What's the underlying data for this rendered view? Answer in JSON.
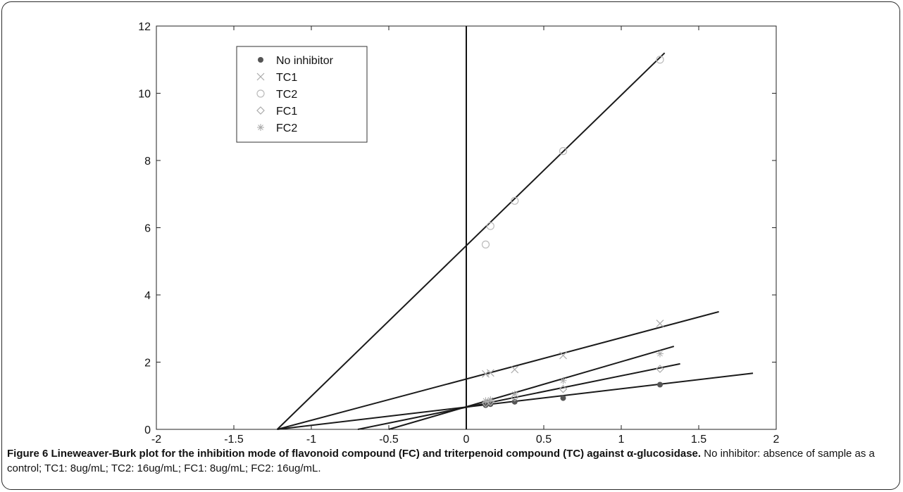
{
  "figure": {
    "caption_bold": "Figure 6 Lineweaver-Burk plot for the inhibition mode of flavonoid compound (FC) and triterpenoid compound (TC) against α-glucosidase.",
    "caption_text": " No inhibitor: absence of sample as a control; TC1: 8ug/mL; TC2: 16ug/mL; FC1: 8ug/mL; FC2: 16ug/mL."
  },
  "chart_data": {
    "type": "scatter",
    "title": "",
    "xlabel": "",
    "ylabel": "",
    "xlim": [
      -2,
      2
    ],
    "ylim": [
      0,
      12
    ],
    "xticks": [
      -2,
      -1.5,
      -1,
      -0.5,
      0,
      0.5,
      1,
      1.5,
      2
    ],
    "xtick_labels": [
      "-2",
      "-1.5",
      "-1",
      "-0.5",
      "0",
      "0.5",
      "1",
      "1.5",
      "2"
    ],
    "yticks": [
      0,
      2,
      4,
      6,
      8,
      10,
      12
    ],
    "ytick_labels": [
      "0",
      "2",
      "4",
      "6",
      "8",
      "10",
      "12"
    ],
    "grid": false,
    "legend_position": "top-left",
    "series": [
      {
        "name": "No inhibitor",
        "marker": "filled-circle",
        "color": "#555555",
        "x": [
          0.125,
          0.156,
          0.3125,
          0.625,
          1.25
        ],
        "y": [
          0.72,
          0.75,
          0.82,
          0.93,
          1.33
        ],
        "fit_line": {
          "x_start": -1.22,
          "y_start": 0,
          "x_end": 1.85,
          "y_end": 1.67
        }
      },
      {
        "name": "TC1",
        "marker": "x",
        "color": "#aaaaaa",
        "x": [
          0.125,
          0.156,
          0.3125,
          0.625,
          1.25
        ],
        "y": [
          1.65,
          1.68,
          1.78,
          2.2,
          3.15
        ],
        "fit_line": {
          "x_start": -1.22,
          "y_start": 0,
          "x_end": 1.63,
          "y_end": 3.5
        }
      },
      {
        "name": "TC2",
        "marker": "open-circle",
        "color": "#bbbbbb",
        "x": [
          0.125,
          0.156,
          0.3125,
          0.625,
          1.25
        ],
        "y": [
          5.5,
          6.05,
          6.8,
          8.28,
          11.0
        ],
        "fit_line": {
          "x_start": -1.22,
          "y_start": 0,
          "x_end": 1.28,
          "y_end": 11.2
        }
      },
      {
        "name": "FC1",
        "marker": "open-diamond",
        "color": "#aaaaaa",
        "x": [
          0.125,
          0.156,
          0.3125,
          0.625,
          1.25
        ],
        "y": [
          0.78,
          0.82,
          0.95,
          1.2,
          1.8
        ],
        "fit_line": {
          "x_start": -0.7,
          "y_start": 0,
          "x_end": 1.38,
          "y_end": 1.95
        }
      },
      {
        "name": "FC2",
        "marker": "asterisk",
        "color": "#aaaaaa",
        "x": [
          0.125,
          0.156,
          0.3125,
          0.625,
          1.25
        ],
        "y": [
          0.85,
          0.88,
          1.05,
          1.45,
          2.25
        ],
        "fit_line": {
          "x_start": -0.5,
          "y_start": 0,
          "x_end": 1.34,
          "y_end": 2.47
        }
      }
    ],
    "vertical_line_at_x": 0
  }
}
